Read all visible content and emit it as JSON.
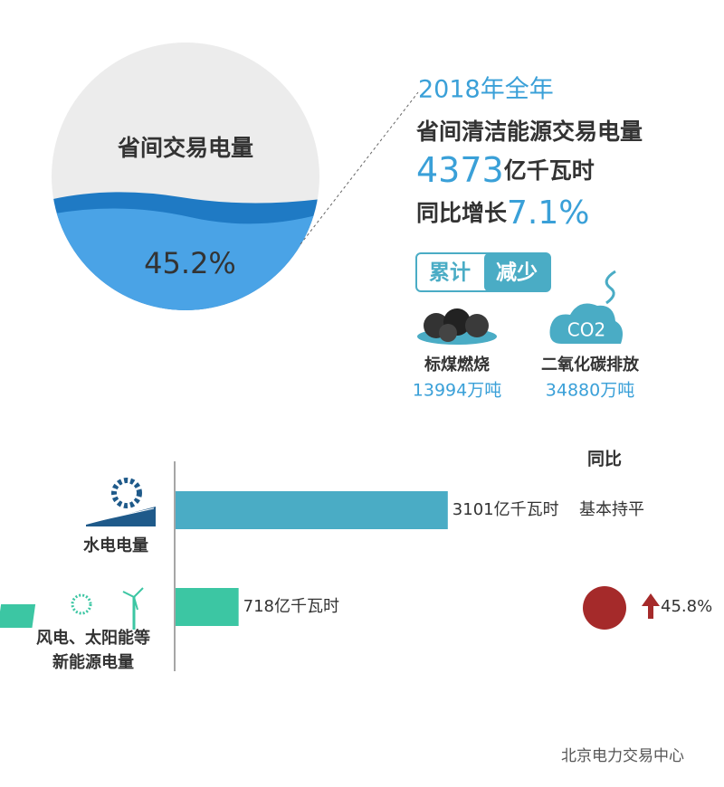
{
  "header": {
    "circle_label": "省间交易电量",
    "circle_value": "45.2%",
    "year": "2018年全年",
    "subject": "省间清洁能源交易电量",
    "total_number": "4373",
    "total_unit": "亿千瓦时",
    "growth_prefix": "同比增长",
    "growth_value": "7.1%"
  },
  "reduction": {
    "tag_left": "累计",
    "tag_right": "减少",
    "co2_icon": "CO2",
    "items": [
      {
        "label": "标煤燃烧",
        "value": "13994万吨"
      },
      {
        "label": "二氧化碳排放",
        "value": "34880万吨"
      }
    ]
  },
  "bar_chart": {
    "yoy_header": "同比",
    "categories": [
      [
        "水电电量"
      ],
      [
        "风电、太阳能等",
        "新能源电量"
      ]
    ],
    "values": [
      3101,
      718
    ],
    "value_labels": [
      "3101亿千瓦时",
      "718亿千瓦时"
    ],
    "colors": [
      "#4aacc5",
      "#3cc6a3"
    ],
    "yoy": [
      "基本持平",
      "45.8%"
    ]
  },
  "footer": {
    "watermark": "北京电力交易中心"
  }
}
